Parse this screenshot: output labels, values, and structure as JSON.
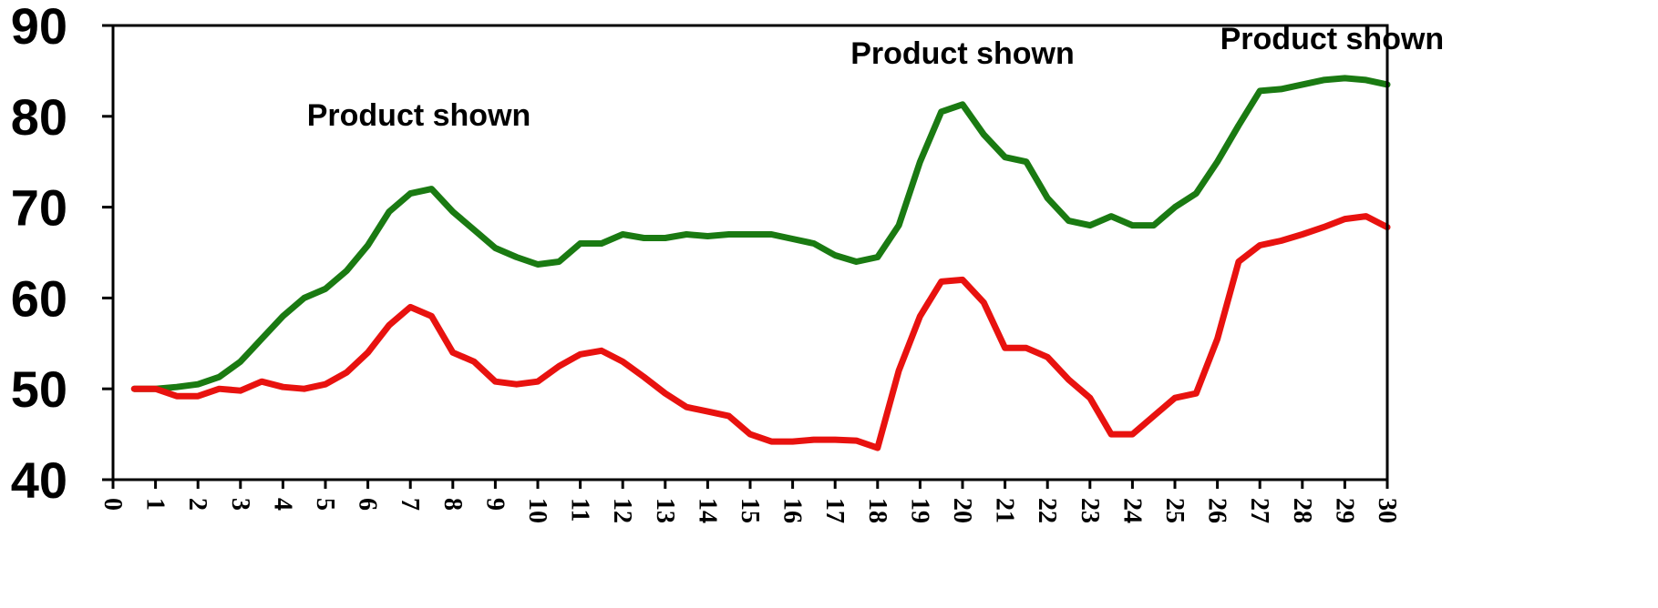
{
  "chart_data": {
    "type": "line",
    "title": "",
    "xlabel": "",
    "ylabel": "",
    "xlim": [
      0,
      30
    ],
    "ylim": [
      40,
      90
    ],
    "grid": false,
    "x_ticks": [
      "0",
      "1",
      "2",
      "3",
      "4",
      "5",
      "6",
      "7",
      "8",
      "9",
      "10",
      "11",
      "12",
      "13",
      "14",
      "15",
      "16",
      "17",
      "18",
      "19",
      "20",
      "21",
      "22",
      "23",
      "24",
      "25",
      "26",
      "27",
      "28",
      "29",
      "30"
    ],
    "y_ticks": [
      "40",
      "50",
      "60",
      "70",
      "80",
      "90"
    ],
    "annotations": [
      {
        "text": "Product shown",
        "x": 7.2,
        "y": 79
      },
      {
        "text": "Product shown",
        "x": 20.0,
        "y": 85.8
      },
      {
        "text": "Product shown",
        "x": 28.7,
        "y": 87.4
      }
    ],
    "series": [
      {
        "color": "#1a7a12",
        "x": [
          0.5,
          1,
          1.5,
          2,
          2.5,
          3,
          3.5,
          4,
          4.5,
          5,
          5.5,
          6,
          6.5,
          7,
          7.5,
          8,
          8.5,
          9,
          9.5,
          10,
          10.5,
          11,
          11.5,
          12,
          12.5,
          13,
          13.5,
          14,
          14.5,
          15,
          15.5,
          16,
          16.5,
          17,
          17.5,
          18,
          18.5,
          19,
          19.5,
          20,
          20.5,
          21,
          21.5,
          22,
          22.5,
          23,
          23.5,
          24,
          24.5,
          25,
          25.5,
          26,
          26.5,
          27,
          27.5,
          28,
          28.5,
          29,
          29.5,
          30
        ],
        "values": [
          50,
          50,
          50.2,
          50.5,
          51.3,
          53,
          55.5,
          58,
          60,
          61,
          63,
          65.8,
          69.5,
          71.5,
          72,
          69.5,
          67.5,
          65.5,
          64.5,
          63.7,
          64,
          66,
          66,
          67,
          66.6,
          66.6,
          67,
          66.8,
          67,
          67,
          67,
          66.5,
          66,
          64.7,
          64,
          64.5,
          68,
          75,
          80.5,
          81.3,
          78,
          75.5,
          75,
          71,
          68.5,
          68,
          69,
          68,
          68,
          70,
          71.5,
          75,
          79,
          82.8,
          83,
          83.5,
          84,
          84.2,
          84,
          83.5
        ]
      },
      {
        "color": "#e8120f",
        "x": [
          0.5,
          1,
          1.5,
          2,
          2.5,
          3,
          3.5,
          4,
          4.5,
          5,
          5.5,
          6,
          6.5,
          7,
          7.5,
          8,
          8.5,
          9,
          9.5,
          10,
          10.5,
          11,
          11.5,
          12,
          12.5,
          13,
          13.5,
          14,
          14.5,
          15,
          15.5,
          16,
          16.5,
          17,
          17.5,
          18,
          18.5,
          19,
          19.5,
          20,
          20.5,
          21,
          21.5,
          22,
          22.5,
          23,
          23.5,
          24,
          24.5,
          25,
          25.5,
          26,
          26.5,
          27,
          27.5,
          28,
          28.5,
          29,
          29.5,
          30
        ],
        "values": [
          50,
          50,
          49.2,
          49.2,
          50,
          49.8,
          50.8,
          50.2,
          50,
          50.5,
          51.8,
          54,
          57,
          59,
          58,
          54,
          53,
          50.8,
          50.5,
          50.8,
          52.5,
          53.8,
          54.2,
          53,
          51.3,
          49.5,
          48,
          47.5,
          47,
          45,
          44.2,
          44.2,
          44.4,
          44.4,
          44.3,
          43.5,
          52,
          58,
          61.8,
          62,
          59.5,
          54.5,
          54.5,
          53.5,
          51,
          49,
          45,
          45,
          47,
          49,
          49.5,
          55.5,
          64,
          65.8,
          66.3,
          67,
          67.8,
          68.7,
          69,
          67.8
        ]
      }
    ]
  }
}
